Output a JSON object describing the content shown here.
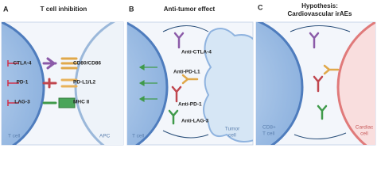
{
  "panels": [
    {
      "letter": "A",
      "title": [
        "T cell inhibition"
      ],
      "receptors": [
        "CTLA-4",
        "PD-1",
        "LAG-3"
      ],
      "ligands": [
        "CD80/CD86",
        "PD-L1/L2",
        "MHC II"
      ],
      "left_cell": [
        "T cell"
      ],
      "right_cell": [
        "APC"
      ]
    },
    {
      "letter": "B",
      "title": [
        "Anti-tumor effect"
      ],
      "antibodies": [
        "Anti-CTLA-4",
        "Anti-PD-L1",
        "Anti-PD-1",
        "Anti-LAG-3"
      ],
      "left_cell": [
        "T cell"
      ],
      "right_cell": [
        "Tumor",
        "cell"
      ]
    },
    {
      "letter": "C",
      "title": [
        "Hypothesis:",
        "Cardiovascular irAEs"
      ],
      "left_cell": [
        "CD8+",
        "T cell"
      ],
      "right_cell": [
        "Cardiac",
        "cell"
      ]
    }
  ]
}
